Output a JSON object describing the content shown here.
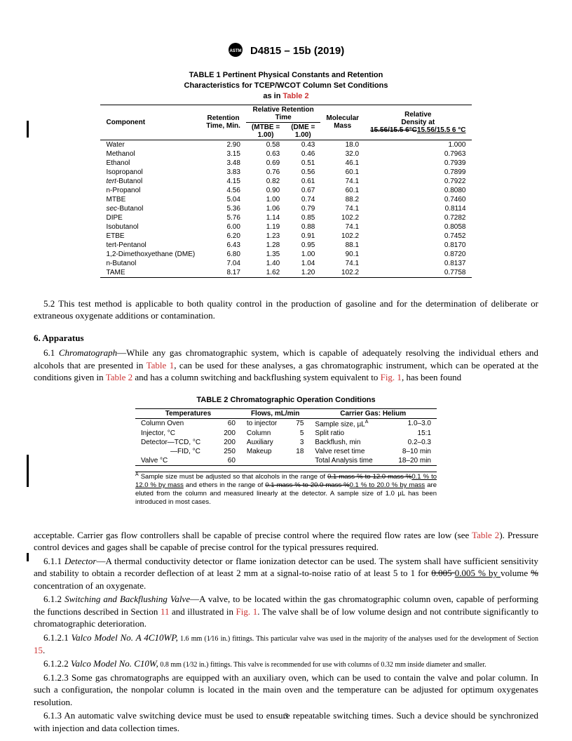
{
  "header": {
    "designation": "D4815 – 15b (2019)"
  },
  "table1": {
    "title_line1": "TABLE 1 Pertinent Physical Constants and Retention",
    "title_line2": "Characteristics for TCEP/WCOT Column Set Conditions",
    "title_line3": "as in ",
    "title_ref": "Table 2",
    "col_component": "Component",
    "col_ret_time": "Retention Time, Min.",
    "col_rel_ret": "Relative Retention Time",
    "col_mtbe": "(MTBE = 1.00)",
    "col_dme": "(DME = 1.00)",
    "col_mass": "Molecular Mass",
    "col_density_top": "Relative Density at",
    "col_density_strike": "15.56/15.5 6°C",
    "col_density_new": "15.56/15.5 6 °C",
    "rows": [
      {
        "c": "Water",
        "rt": "2.90",
        "m": "0.58",
        "d": "0.43",
        "mm": "18.0",
        "rd": "1.000"
      },
      {
        "c": "Methanol",
        "rt": "3.15",
        "m": "0.63",
        "d": "0.46",
        "mm": "32.0",
        "rd": "0.7963"
      },
      {
        "c": "Ethanol",
        "rt": "3.48",
        "m": "0.69",
        "d": "0.51",
        "mm": "46.1",
        "rd": "0.7939"
      },
      {
        "c": "Isopropanol",
        "rt": "3.83",
        "m": "0.76",
        "d": "0.56",
        "mm": "60.1",
        "rd": "0.7899"
      },
      {
        "c": "tert-Butanol",
        "rt": "4.15",
        "m": "0.82",
        "d": "0.61",
        "mm": "74.1",
        "rd": "0.7922",
        "i": true
      },
      {
        "c": "n-Propanol",
        "rt": "4.56",
        "m": "0.90",
        "d": "0.67",
        "mm": "60.1",
        "rd": "0.8080"
      },
      {
        "c": "MTBE",
        "rt": "5.04",
        "m": "1.00",
        "d": "0.74",
        "mm": "88.2",
        "rd": "0.7460"
      },
      {
        "c": "sec-Butanol",
        "rt": "5.36",
        "m": "1.06",
        "d": "0.79",
        "mm": "74.1",
        "rd": "0.8114",
        "i": true
      },
      {
        "c": "DIPE",
        "rt": "5.76",
        "m": "1.14",
        "d": "0.85",
        "mm": "102.2",
        "rd": "0.7282"
      },
      {
        "c": "Isobutanol",
        "rt": "6.00",
        "m": "1.19",
        "d": "0.88",
        "mm": "74.1",
        "rd": "0.8058"
      },
      {
        "c": "ETBE",
        "rt": "6.20",
        "m": "1.23",
        "d": "0.91",
        "mm": "102.2",
        "rd": "0.7452"
      },
      {
        "c": "tert-Pentanol",
        "rt": "6.43",
        "m": "1.28",
        "d": "0.95",
        "mm": "88.1",
        "rd": "0.8170"
      },
      {
        "c": "1,2-Dimethoxyethane (DME)",
        "rt": "6.80",
        "m": "1.35",
        "d": "1.00",
        "mm": "90.1",
        "rd": "0.8720"
      },
      {
        "c": "n-Butanol",
        "rt": "7.04",
        "m": "1.40",
        "d": "1.04",
        "mm": "74.1",
        "rd": "0.8137"
      },
      {
        "c": "TAME",
        "rt": "8.17",
        "m": "1.62",
        "d": "1.20",
        "mm": "102.2",
        "rd": "0.7758"
      }
    ]
  },
  "p52": "5.2 This test method is applicable to both quality control in the production of gasoline and for the determination of deliberate or extraneous oxygenate additions or contamination.",
  "sec6": "6. Apparatus",
  "p61a": "6.1 ",
  "p61i": "Chromatograph",
  "p61b": "—While any gas chromatographic system, which is capable of adequately resolving the individual ethers and alcohols that are presented in ",
  "p61r1": "Table 1",
  "p61c": ", can be used for these analyses, a gas chromatographic instrument, which can be operated at the conditions given in ",
  "p61r2": "Table 2",
  "p61d": " and has a column switching and backflushing system equivalent to ",
  "p61r3": "Fig. 1",
  "p61e": ", has been found",
  "table2": {
    "title": "TABLE 2 Chromatographic Operation Conditions",
    "h_temp": "Temperatures",
    "h_flow": "Flows, mL/min",
    "h_gas": "Carrier Gas: Helium",
    "rows": [
      {
        "t": "Column Oven",
        "tv": "60",
        "f": "to injector",
        "fv": "75",
        "g": "Sample size, µL",
        "gn": "A",
        "gv": "1.0–3.0"
      },
      {
        "t": "Injector, °C",
        "tv": "200",
        "f": "Column",
        "fv": "5",
        "g": "Split ratio",
        "gn": "",
        "gv": "15:1"
      },
      {
        "t": "Detector—TCD, °C",
        "tv": "200",
        "f": "Auxiliary",
        "fv": "3",
        "g": "Backflush, min",
        "gn": "",
        "gv": "0.2–0.3"
      },
      {
        "t": "—FID, °C",
        "tv": "250",
        "f": "Makeup",
        "fv": "18",
        "g": "Valve reset time",
        "gn": "",
        "gv": "8–10 min"
      },
      {
        "t": "Valve °C",
        "tv": "60",
        "f": "",
        "fv": "",
        "g": "Total Analysis time",
        "gn": "",
        "gv": "18–20 min"
      }
    ],
    "note_a": "A",
    "note1": " Sample size must be adjusted so that alcohols in the range of ",
    "note_s1": "0.1 mass % to 12.0 mass %",
    "note_u1": "0.1 % to 12.0 % by mass",
    "note2": " and ethers in the range of ",
    "note_s2": "0.1 mass % to 20.0 mass %",
    "note_u2": "0.1 % to 20.0 % by mass",
    "note3": " are eluted from the column and measured linearly at the detector. A sample size of 1.0 µL has been introduced in most cases."
  },
  "p_accept1": "acceptable. Carrier gas flow controllers shall be capable of precise control where the required flow rates are low (see ",
  "p_accept_ref": "Table 2",
  "p_accept2": "). Pressure control devices and gages shall be capable of precise control for the typical pressures required.",
  "p611a": "6.1.1 ",
  "p611i": "Detector",
  "p611b": "—A thermal conductivity detector or flame ionization detector can be used. The system shall have sufficient sensitivity and stability to obtain a recorder deflection of at least 2 mm at a signal-to-noise ratio of at least 5 to 1 for ",
  "p611_s1": "0.005 ",
  "p611_u1": "0.005 % by ",
  "p611c": "volume ",
  "p611_s2": "% ",
  "p611d": "concentration of an oxygenate.",
  "p612a": "6.1.2 ",
  "p612i": "Switching and Backflushing Valve",
  "p612b": "—A valve, to be located within the gas chromatographic column oven, capable of performing the functions described in Section ",
  "p612r1": "11",
  "p612c": " and illustrated in ",
  "p612r2": "Fig. 1",
  "p612d": ". The valve shall be of low volume design and not contribute significantly to chromatographic deterioration.",
  "p6121a": "6.1.2.1 ",
  "p6121i": "Valco Model No. A 4C10WP,",
  "p6121b": " 1.6 mm (1⁄16 in.) fittings. This particular valve was used in the majority of the analyses used for the development of Section ",
  "p6121r": "15",
  "p6121c": ".",
  "p6122a": "6.1.2.2 ",
  "p6122i": "Valco Model No. C10W,",
  "p6122b": " 0.8 mm (1⁄32 in.) fittings. This valve is recommended for use with columns of 0.32 mm inside diameter and smaller.",
  "p6123": "6.1.2.3 Some gas chromatographs are equipped with an auxiliary oven, which can be used to contain the valve and polar column. In such a configuration, the nonpolar column is located in the main oven and the temperature can be adjusted for optimum oxygenates resolution.",
  "p613": "6.1.3 An automatic valve switching device must be used to ensure repeatable switching times. Such a device should be synchronized with injection and data collection times.",
  "page_number": "3"
}
